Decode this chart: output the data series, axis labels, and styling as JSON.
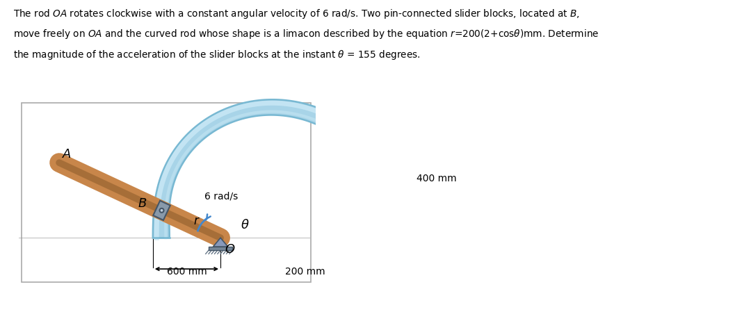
{
  "bg_color": "#ffffff",
  "box_facecolor": "#ffffff",
  "box_edgecolor": "#aaaaaa",
  "limacon_fill": "#a8d4e8",
  "limacon_edge": "#78b8d2",
  "limacon_highlight": "#c8e8f5",
  "rod_color": "#c8864a",
  "rod_shadow": "#8b5c2a",
  "slider_face": "#8899aa",
  "slider_edge": "#445566",
  "pin_face": "#bbccdd",
  "ground_face": "#8899bb",
  "ground_bar": "#778899",
  "omega_arrow_color": "#4488cc",
  "text_color": "#000000",
  "label_A": "A",
  "label_B": "B",
  "label_r": "r",
  "label_O": "O",
  "label_theta": "θ",
  "label_omega": "6 rad/s",
  "label_400": "400 mm",
  "label_600": "600 mm",
  "label_200": "200 mm",
  "fig_width": 10.8,
  "fig_height": 4.49,
  "dpi": 100,
  "theta_deg": 155,
  "omega": 6
}
